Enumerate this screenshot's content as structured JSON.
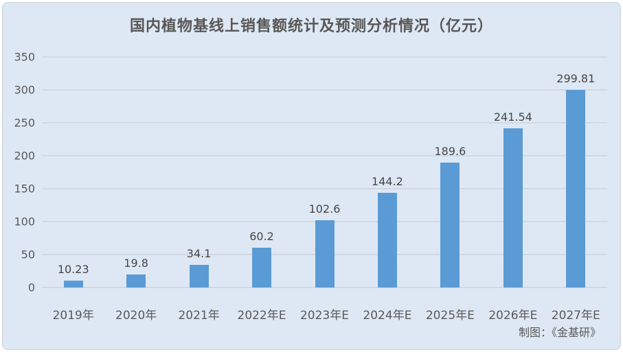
{
  "title": "国内植物基线上销售额统计及预测分析情况（亿元）",
  "footer": {
    "credit": "制图：《金基研》"
  },
  "colors": {
    "background": "#dee8f4",
    "bar": "#5b9bd5",
    "gridline": "#d2d8e3",
    "axis_text": "#595959",
    "title_text": "#575757",
    "value_text": "#454545",
    "panel_border": "#cdd2da"
  },
  "chart_data": {
    "type": "bar",
    "title": "国内植物基线上销售额统计及预测分析情况（亿元）",
    "categories": [
      "2019年",
      "2020年",
      "2021年",
      "2022年E",
      "2023年E",
      "2024年E",
      "2025年E",
      "2026年E",
      "2027年E"
    ],
    "values": [
      10.23,
      19.8,
      34.1,
      60.2,
      102.6,
      144.2,
      189.6,
      241.54,
      299.81
    ],
    "value_labels": [
      "10.23",
      "19.8",
      "34.1",
      "60.2",
      "102.6",
      "144.2",
      "189.6",
      "241.54",
      "299.81"
    ],
    "xlabel": "",
    "ylabel": "",
    "ylim": [
      0,
      350
    ],
    "yticks": [
      0,
      50,
      100,
      150,
      200,
      250,
      300,
      350
    ],
    "grid": true,
    "legend": false,
    "bar_color": "#5b9bd5"
  }
}
